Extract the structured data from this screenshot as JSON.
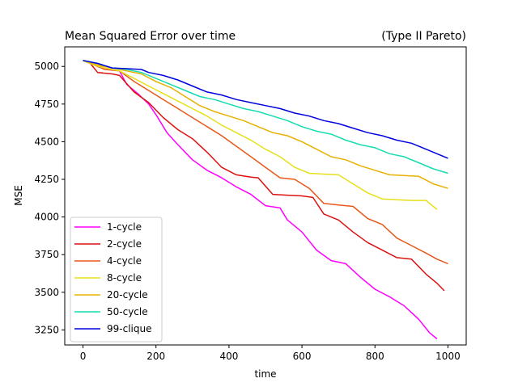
{
  "chart_data": {
    "type": "line",
    "title": "Mean Squared Error over time",
    "subtitle": "(Type II Pareto)",
    "xlabel": "time",
    "ylabel": "MSE",
    "xlim": [
      -50,
      1050
    ],
    "ylim": [
      3150,
      5130
    ],
    "xticks": [
      0,
      200,
      400,
      600,
      800,
      1000
    ],
    "yticks": [
      3250,
      3500,
      3750,
      4000,
      4250,
      4500,
      4750,
      5000
    ],
    "grid": false,
    "legend_position": "lower-left",
    "series": [
      {
        "name": "1-cycle",
        "color": "#ff00ff",
        "x": [
          0,
          20,
          60,
          100,
          120,
          150,
          180,
          200,
          230,
          260,
          300,
          340,
          380,
          420,
          460,
          500,
          540,
          560,
          600,
          640,
          680,
          720,
          760,
          800,
          840,
          880,
          920,
          950,
          970
        ],
        "y": [
          5040,
          5020,
          4990,
          4970,
          4880,
          4820,
          4750,
          4680,
          4560,
          4480,
          4380,
          4310,
          4260,
          4200,
          4150,
          4075,
          4060,
          3980,
          3900,
          3780,
          3710,
          3690,
          3600,
          3520,
          3470,
          3410,
          3320,
          3230,
          3190
        ]
      },
      {
        "name": "2-cycle",
        "color": "#dd1111",
        "x": [
          0,
          20,
          40,
          80,
          100,
          140,
          180,
          220,
          260,
          300,
          340,
          380,
          420,
          460,
          480,
          520,
          560,
          600,
          630,
          660,
          700,
          740,
          780,
          820,
          860,
          900,
          940,
          970,
          990
        ],
        "y": [
          5040,
          5020,
          4960,
          4950,
          4940,
          4830,
          4760,
          4660,
          4580,
          4520,
          4430,
          4330,
          4280,
          4265,
          4260,
          4150,
          4145,
          4140,
          4130,
          4020,
          3980,
          3900,
          3830,
          3780,
          3730,
          3720,
          3620,
          3560,
          3510
        ]
      },
      {
        "name": "4-cycle",
        "color": "#e8581a",
        "x": [
          0,
          30,
          60,
          100,
          140,
          180,
          220,
          260,
          300,
          340,
          380,
          420,
          460,
          500,
          540,
          580,
          620,
          660,
          700,
          740,
          780,
          820,
          860,
          900,
          940,
          970,
          1000
        ],
        "y": [
          5040,
          5010,
          4980,
          4970,
          4900,
          4840,
          4780,
          4720,
          4660,
          4600,
          4540,
          4470,
          4400,
          4330,
          4260,
          4250,
          4190,
          4090,
          4080,
          4070,
          3990,
          3950,
          3860,
          3810,
          3760,
          3720,
          3690
        ]
      },
      {
        "name": "8-cycle",
        "color": "#e6e01a",
        "x": [
          0,
          30,
          60,
          100,
          140,
          180,
          220,
          260,
          300,
          340,
          380,
          420,
          460,
          500,
          540,
          580,
          620,
          660,
          700,
          740,
          780,
          820,
          860,
          900,
          940,
          970
        ],
        "y": [
          5040,
          5010,
          4990,
          4970,
          4920,
          4870,
          4820,
          4770,
          4720,
          4670,
          4610,
          4560,
          4510,
          4450,
          4400,
          4330,
          4290,
          4285,
          4280,
          4220,
          4160,
          4120,
          4115,
          4110,
          4110,
          4050
        ]
      },
      {
        "name": "20-cycle",
        "color": "#e8b000",
        "x": [
          0,
          40,
          80,
          120,
          160,
          200,
          240,
          280,
          320,
          360,
          400,
          440,
          480,
          520,
          560,
          600,
          640,
          680,
          720,
          760,
          800,
          840,
          880,
          920,
          960,
          1000
        ],
        "y": [
          5040,
          5010,
          4990,
          4970,
          4950,
          4900,
          4860,
          4800,
          4740,
          4700,
          4670,
          4640,
          4600,
          4560,
          4540,
          4500,
          4450,
          4400,
          4380,
          4340,
          4310,
          4280,
          4275,
          4270,
          4220,
          4190
        ]
      },
      {
        "name": "50-cycle",
        "color": "#16dcb0",
        "x": [
          0,
          40,
          80,
          120,
          160,
          200,
          240,
          280,
          320,
          360,
          400,
          440,
          480,
          520,
          560,
          600,
          640,
          680,
          720,
          760,
          800,
          840,
          880,
          920,
          960,
          1000
        ],
        "y": [
          5040,
          5020,
          4990,
          4980,
          4960,
          4920,
          4880,
          4840,
          4800,
          4780,
          4750,
          4720,
          4700,
          4670,
          4640,
          4600,
          4570,
          4550,
          4510,
          4480,
          4460,
          4420,
          4400,
          4360,
          4320,
          4290
        ]
      },
      {
        "name": "99-clique",
        "color": "#0000dd",
        "x": [
          0,
          40,
          80,
          120,
          160,
          180,
          220,
          260,
          300,
          340,
          380,
          420,
          460,
          500,
          540,
          580,
          620,
          660,
          700,
          740,
          780,
          820,
          860,
          900,
          940,
          980,
          1000
        ],
        "y": [
          5040,
          5020,
          4990,
          4985,
          4980,
          4960,
          4940,
          4910,
          4870,
          4830,
          4810,
          4780,
          4760,
          4740,
          4720,
          4690,
          4670,
          4640,
          4620,
          4590,
          4560,
          4540,
          4510,
          4490,
          4450,
          4410,
          4390
        ]
      }
    ]
  }
}
